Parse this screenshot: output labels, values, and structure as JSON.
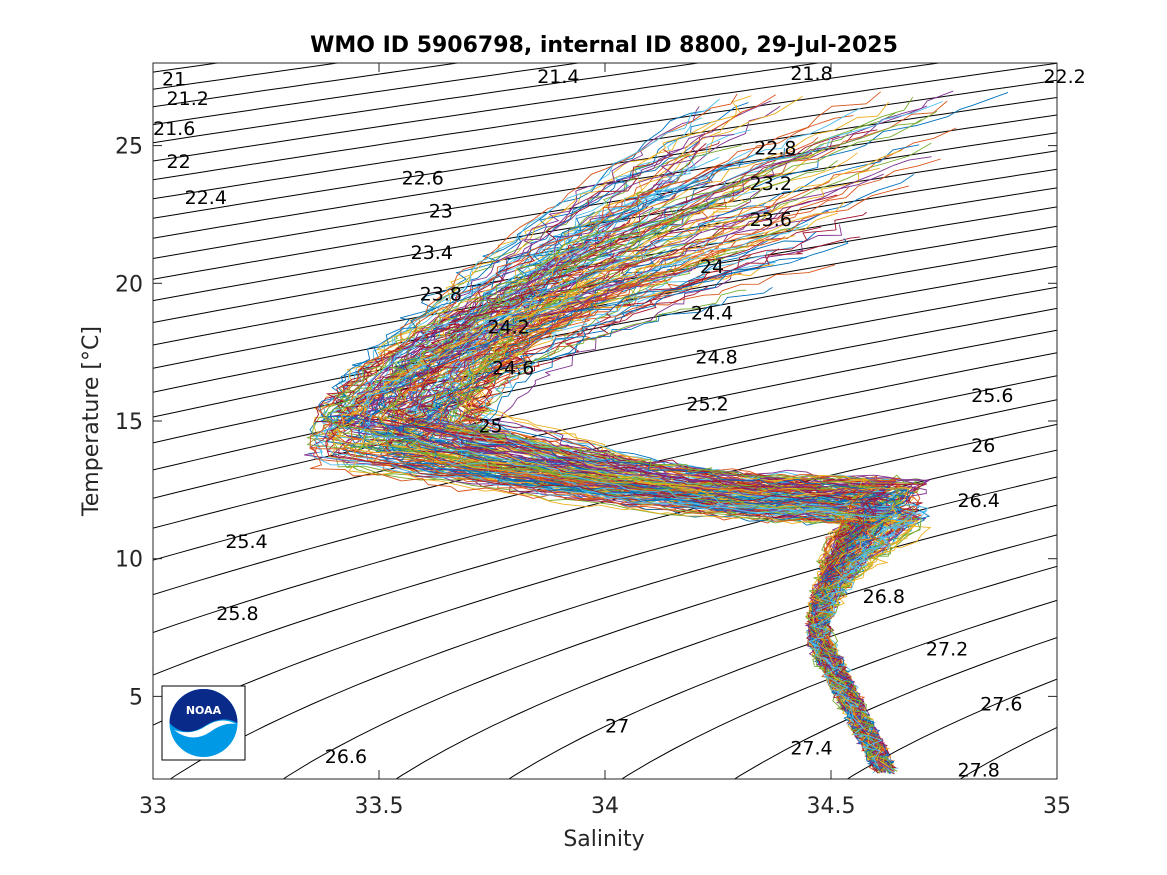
{
  "chart_data": {
    "type": "line",
    "title": "WMO ID 5906798, internal ID 8800, 29-Jul-2025",
    "xlabel": "Salinity",
    "ylabel": "Temperature [°C]",
    "xlim": [
      33,
      35
    ],
    "ylim": [
      2,
      28
    ],
    "x_ticks": [
      33,
      33.5,
      34,
      34.5,
      35
    ],
    "x_tick_labels": [
      "33",
      "33.5",
      "34",
      "34.5",
      "35"
    ],
    "y_ticks": [
      5,
      10,
      15,
      20,
      25
    ],
    "y_tick_labels": [
      "5",
      "10",
      "15",
      "20",
      "25"
    ],
    "grid": false,
    "isopycnal_labels": [
      {
        "text": "21",
        "s": 33.02,
        "t": 27.4
      },
      {
        "text": "21.2",
        "s": 33.03,
        "t": 26.7
      },
      {
        "text": "21.4",
        "s": 33.85,
        "t": 27.5
      },
      {
        "text": "21.8",
        "s": 34.41,
        "t": 27.6
      },
      {
        "text": "22.2",
        "s": 34.97,
        "t": 27.5
      },
      {
        "text": "21.6",
        "s": 33.0,
        "t": 25.6
      },
      {
        "text": "22",
        "s": 33.03,
        "t": 24.4
      },
      {
        "text": "22.4",
        "s": 33.07,
        "t": 23.1
      },
      {
        "text": "22.6",
        "s": 33.55,
        "t": 23.8
      },
      {
        "text": "23",
        "s": 33.61,
        "t": 22.6
      },
      {
        "text": "23.4",
        "s": 33.57,
        "t": 21.1
      },
      {
        "text": "23.8",
        "s": 33.59,
        "t": 19.6
      },
      {
        "text": "24.2",
        "s": 33.74,
        "t": 18.4
      },
      {
        "text": "24.6",
        "s": 33.75,
        "t": 16.9
      },
      {
        "text": "25",
        "s": 33.72,
        "t": 14.8
      },
      {
        "text": "22.8",
        "s": 34.33,
        "t": 24.9
      },
      {
        "text": "23.2",
        "s": 34.32,
        "t": 23.6
      },
      {
        "text": "23.6",
        "s": 34.32,
        "t": 22.3
      },
      {
        "text": "24",
        "s": 34.21,
        "t": 20.6
      },
      {
        "text": "24.4",
        "s": 34.19,
        "t": 18.9
      },
      {
        "text": "24.8",
        "s": 34.2,
        "t": 17.3
      },
      {
        "text": "25.2",
        "s": 34.18,
        "t": 15.6
      },
      {
        "text": "25.6",
        "s": 34.81,
        "t": 15.9
      },
      {
        "text": "26",
        "s": 34.81,
        "t": 14.1
      },
      {
        "text": "26.4",
        "s": 34.78,
        "t": 12.1
      },
      {
        "text": "25.4",
        "s": 33.16,
        "t": 10.6
      },
      {
        "text": "25.8",
        "s": 33.14,
        "t": 8.0
      },
      {
        "text": "26.8",
        "s": 34.57,
        "t": 8.6
      },
      {
        "text": "27.2",
        "s": 34.71,
        "t": 6.7
      },
      {
        "text": "27.6",
        "s": 34.83,
        "t": 4.7
      },
      {
        "text": "26.6",
        "s": 33.38,
        "t": 2.8
      },
      {
        "text": "27",
        "s": 34.0,
        "t": 3.9
      },
      {
        "text": "27.4",
        "s": 34.41,
        "t": 3.1
      },
      {
        "text": "27.8",
        "s": 34.78,
        "t": 2.3
      }
    ],
    "profile_envelope": {
      "description_points": [
        {
          "s": 33.4,
          "t": 14.5
        },
        {
          "s": 33.8,
          "t": 18.5
        },
        {
          "s": 34.1,
          "t": 21.0
        },
        {
          "s": 34.5,
          "t": 23.5
        },
        {
          "s": 34.7,
          "t": 11.8
        },
        {
          "s": 34.5,
          "t": 9.0
        },
        {
          "s": 34.5,
          "t": 5.0
        },
        {
          "s": 34.62,
          "t": 2.3
        }
      ]
    },
    "series_colors": [
      "#0072BD",
      "#D95319",
      "#EDB120",
      "#7E2F8E",
      "#77AC30",
      "#4DBEEE",
      "#A2142F"
    ],
    "logo": "noaa-logo"
  }
}
